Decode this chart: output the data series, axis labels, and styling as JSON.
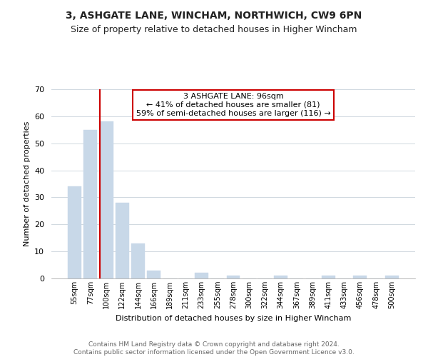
{
  "title": "3, ASHGATE LANE, WINCHAM, NORTHWICH, CW9 6PN",
  "subtitle": "Size of property relative to detached houses in Higher Wincham",
  "xlabel": "Distribution of detached houses by size in Higher Wincham",
  "ylabel": "Number of detached properties",
  "footer_line1": "Contains HM Land Registry data © Crown copyright and database right 2024.",
  "footer_line2": "Contains public sector information licensed under the Open Government Licence v3.0.",
  "bin_labels": [
    "55sqm",
    "77sqm",
    "100sqm",
    "122sqm",
    "144sqm",
    "166sqm",
    "189sqm",
    "211sqm",
    "233sqm",
    "255sqm",
    "278sqm",
    "300sqm",
    "322sqm",
    "344sqm",
    "367sqm",
    "389sqm",
    "411sqm",
    "433sqm",
    "456sqm",
    "478sqm",
    "500sqm"
  ],
  "bar_heights": [
    34,
    55,
    58,
    28,
    13,
    3,
    0,
    0,
    2,
    0,
    1,
    0,
    0,
    1,
    0,
    0,
    1,
    0,
    1,
    0,
    1
  ],
  "bar_color": "#c8d8e8",
  "highlight_line_color": "#cc0000",
  "highlight_bar_index": 2,
  "ylim": [
    0,
    70
  ],
  "yticks": [
    0,
    10,
    20,
    30,
    40,
    50,
    60,
    70
  ],
  "annotation_line1": "3 ASHGATE LANE: 96sqm",
  "annotation_line2": "← 41% of detached houses are smaller (81)",
  "annotation_line3": "59% of semi-detached houses are larger (116) →",
  "background_color": "#ffffff",
  "grid_color": "#d0d8e0",
  "title_fontsize": 10,
  "subtitle_fontsize": 9,
  "ylabel_fontsize": 8,
  "xlabel_fontsize": 8,
  "tick_fontsize": 8,
  "xtick_fontsize": 7,
  "footer_fontsize": 6.5
}
